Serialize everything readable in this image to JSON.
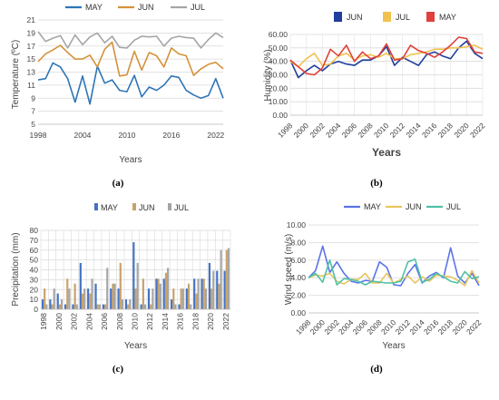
{
  "colors": {
    "may": "#2E75B6",
    "jun": "#D4923A",
    "jul": "#A5A5A5",
    "b_jun": "#1F3E9E",
    "b_jul": "#F2C24F",
    "b_may": "#E0413A",
    "c_may": "#4472C4",
    "c_jun": "#C8A26A",
    "c_jul": "#A5A5A5",
    "d_may": "#5B74E8",
    "d_jun": "#E8C660",
    "d_jul": "#4FC1A6"
  },
  "chart_data": [
    {
      "panel": "a",
      "caption": "(a)",
      "type": "line",
      "xlabel": "Years",
      "ylabel": "Temperature (ºC)",
      "ylim": [
        5,
        21
      ],
      "yticks": [
        "5",
        "7",
        "9",
        "11",
        "13",
        "15",
        "17",
        "19",
        "21"
      ],
      "xticks": [
        "1998",
        "2004",
        "2010",
        "2016",
        "2022"
      ],
      "grid": "horizontal",
      "legend": "top",
      "x": [
        1998,
        1999,
        2000,
        2001,
        2002,
        2003,
        2004,
        2005,
        2006,
        2007,
        2008,
        2009,
        2010,
        2011,
        2012,
        2013,
        2014,
        2015,
        2016,
        2017,
        2018,
        2019,
        2020,
        2021,
        2022,
        2023
      ],
      "series": [
        {
          "name": "MAY",
          "color_key": "may",
          "values": [
            11.8,
            12.0,
            14.4,
            13.8,
            12.0,
            8.4,
            12.4,
            8.1,
            13.9,
            11.3,
            11.8,
            10.2,
            10.0,
            12.5,
            9.2,
            10.7,
            10.2,
            11.0,
            12.4,
            12.2,
            10.2,
            9.5,
            9.0,
            9.4,
            12.0,
            9.0
          ]
        },
        {
          "name": "JUN",
          "color_key": "jun",
          "values": [
            14.6,
            15.8,
            16.4,
            17.1,
            16.0,
            15.0,
            15.0,
            15.6,
            13.8,
            16.5,
            17.6,
            12.4,
            12.6,
            16.2,
            13.3,
            16.0,
            15.5,
            13.8,
            16.7,
            15.8,
            15.5,
            12.5,
            13.5,
            14.2,
            14.5,
            13.5
          ]
        },
        {
          "name": "JUL",
          "color_key": "jul",
          "values": [
            19.2,
            17.7,
            18.2,
            18.6,
            16.7,
            18.7,
            17.2,
            18.4,
            19.0,
            17.5,
            18.5,
            16.8,
            16.7,
            17.9,
            18.5,
            18.4,
            18.5,
            17.0,
            18.2,
            18.5,
            18.3,
            18.2,
            16.7,
            18.0,
            19.0,
            18.3
          ]
        }
      ]
    },
    {
      "panel": "b",
      "caption": "(b)",
      "type": "line",
      "xlabel": "Years",
      "ylabel": "Humidity (%)",
      "ylim": [
        0,
        60
      ],
      "yticks": [
        "0.00",
        "10.00",
        "20.00",
        "30.00",
        "40.00",
        "50.00",
        "60.00"
      ],
      "xticks": [
        "1998",
        "2000",
        "2002",
        "2004",
        "2006",
        "2008",
        "2010",
        "2012",
        "2014",
        "2016",
        "2018",
        "2020",
        "2022"
      ],
      "grid": "both",
      "legend": "top",
      "x": [
        1998,
        1999,
        2000,
        2001,
        2002,
        2003,
        2004,
        2005,
        2006,
        2007,
        2008,
        2009,
        2010,
        2011,
        2012,
        2013,
        2014,
        2015,
        2016,
        2017,
        2018,
        2019,
        2020,
        2021,
        2022
      ],
      "series": [
        {
          "name": "JUN",
          "color_key": "b_jun",
          "values": [
            41,
            28,
            33,
            37,
            33,
            38,
            40,
            38,
            37,
            41,
            41,
            44,
            51,
            37,
            43,
            40,
            37,
            45,
            47,
            44,
            42,
            50,
            55,
            46,
            42
          ]
        },
        {
          "name": "JUL",
          "color_key": "b_jul",
          "values": [
            40,
            36,
            42,
            46,
            37,
            38,
            44,
            46,
            41,
            44,
            45,
            43,
            46,
            42,
            42,
            45,
            46,
            47,
            49,
            49,
            50,
            50,
            51,
            52,
            49
          ]
        },
        {
          "name": "MAY",
          "color_key": "b_may",
          "values": [
            41,
            36,
            31,
            30,
            35,
            49,
            44,
            52,
            40,
            47,
            42,
            44,
            53,
            41,
            42,
            52,
            48,
            46,
            43,
            47,
            52,
            58,
            57,
            47,
            46
          ]
        }
      ]
    },
    {
      "panel": "c",
      "caption": "(c)",
      "type": "bar",
      "xlabel": "Years",
      "ylabel": "Precipitation (mm)",
      "ylim": [
        0,
        80
      ],
      "yticks": [
        "0",
        "10",
        "20",
        "30",
        "40",
        "50",
        "60",
        "70",
        "80"
      ],
      "xticks": [
        "1998",
        "2000",
        "2002",
        "2004",
        "2006",
        "2008",
        "2010",
        "2012",
        "2014",
        "2016",
        "2018",
        "2020",
        "2022"
      ],
      "grid": "both",
      "legend": "top-right",
      "categories": [
        1998,
        1999,
        2000,
        2001,
        2002,
        2003,
        2004,
        2005,
        2006,
        2007,
        2008,
        2009,
        2010,
        2011,
        2012,
        2013,
        2014,
        2015,
        2016,
        2017,
        2018,
        2019,
        2020,
        2021,
        2022
      ],
      "series": [
        {
          "name": "MAY",
          "color_key": "c_may",
          "values": [
            10,
            10,
            16,
            5,
            5,
            47,
            21,
            26,
            5,
            21,
            21,
            10,
            68,
            5,
            21,
            31,
            31,
            10,
            5,
            21,
            31,
            31,
            47,
            39,
            39
          ]
        },
        {
          "name": "JUN",
          "color_key": "c_jun",
          "values": [
            21,
            5,
            5,
            31,
            26,
            16,
            16,
            5,
            5,
            26,
            47,
            5,
            21,
            31,
            5,
            31,
            37,
            21,
            21,
            26,
            16,
            31,
            21,
            26,
            60
          ]
        },
        {
          "name": "JUL",
          "color_key": "c_jul",
          "values": [
            5,
            21,
            10,
            21,
            5,
            21,
            31,
            5,
            42,
            26,
            10,
            10,
            47,
            5,
            21,
            26,
            42,
            5,
            21,
            5,
            31,
            21,
            39,
            60,
            62
          ]
        }
      ]
    },
    {
      "panel": "d",
      "caption": "(d)",
      "type": "line",
      "xlabel": "Years",
      "ylabel": "Wind speed (m/s)",
      "ylim": [
        0,
        10
      ],
      "yticks": [
        "0.00",
        "2.00",
        "4.00",
        "6.00",
        "8.00",
        "10.00"
      ],
      "xticks": [
        "1998",
        "2000",
        "2002",
        "2004",
        "2006",
        "2008",
        "2010",
        "2012",
        "2014",
        "2016",
        "2018",
        "2020",
        "2022"
      ],
      "grid": "horizontal",
      "legend": "top",
      "x": [
        1998,
        1999,
        2000,
        2001,
        2002,
        2003,
        2004,
        2005,
        2006,
        2007,
        2008,
        2009,
        2010,
        2011,
        2012,
        2013,
        2014,
        2015,
        2016,
        2017,
        2018,
        2019,
        2020,
        2021,
        2022
      ],
      "series": [
        {
          "name": "MAY",
          "color_key": "d_may",
          "values": [
            4.0,
            4.8,
            7.6,
            4.6,
            5.8,
            4.5,
            3.6,
            3.4,
            3.7,
            3.6,
            5.8,
            5.2,
            3.2,
            3.1,
            4.5,
            5.5,
            3.4,
            4.2,
            4.6,
            4.0,
            7.4,
            4.2,
            3.4,
            4.5,
            3.1
          ]
        },
        {
          "name": "JUN",
          "color_key": "d_jun",
          "values": [
            4.0,
            4.3,
            4.2,
            4.5,
            3.6,
            3.3,
            3.8,
            3.8,
            4.5,
            3.4,
            3.4,
            4.5,
            3.4,
            3.8,
            4.2,
            3.4,
            4.1,
            3.6,
            4.3,
            4.2,
            4.1,
            3.7,
            3.1,
            4.8,
            3.4
          ]
        },
        {
          "name": "JUL",
          "color_key": "d_jul",
          "values": [
            4.0,
            4.5,
            3.5,
            6.0,
            3.2,
            3.9,
            3.8,
            3.6,
            3.2,
            3.6,
            3.5,
            3.4,
            3.4,
            3.6,
            5.8,
            6.1,
            3.5,
            3.8,
            4.5,
            4.1,
            3.6,
            3.4,
            4.7,
            3.9,
            4.1
          ]
        }
      ]
    }
  ]
}
